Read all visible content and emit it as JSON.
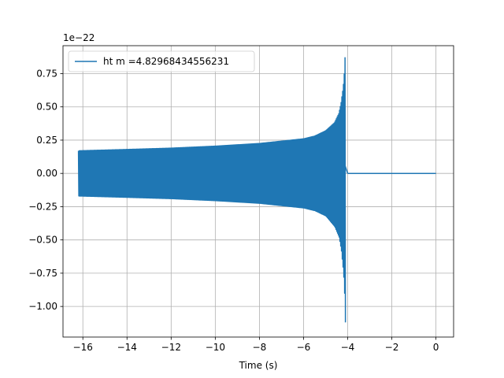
{
  "chart_data": {
    "type": "line",
    "xlabel": "Time (s)",
    "ylabel": "",
    "offset_text": "1e−22",
    "scale": 1e-22,
    "xlim": [
      -16.9,
      0.8
    ],
    "ylim": [
      -1.23,
      0.96
    ],
    "xticks": [
      -16,
      -14,
      -12,
      -10,
      -8,
      -6,
      -4,
      -2,
      0
    ],
    "xtick_labels": [
      "−16",
      "−14",
      "−12",
      "−10",
      "−8",
      "−6",
      "−4",
      "−2",
      "0"
    ],
    "yticks": [
      -1.0,
      -0.75,
      -0.5,
      -0.25,
      0.0,
      0.25,
      0.5,
      0.75
    ],
    "ytick_labels": [
      "−1.00",
      "−0.75",
      "−0.50",
      "−0.25",
      "0.00",
      "0.25",
      "0.50",
      "0.75"
    ],
    "grid": true,
    "legend_position": "upper-left",
    "series": [
      {
        "name": "ht m =4.82968434556231",
        "color": "#1f77b4",
        "t_start": -16.2,
        "t_merger": -4.12,
        "t_end": 0.0,
        "envelope": {
          "t": [
            -16.2,
            -14,
            -12,
            -10,
            -8,
            -6,
            -5.5,
            -5,
            -4.6,
            -4.4,
            -4.3,
            -4.2,
            -4.15,
            -4.12
          ],
          "upper": [
            0.17,
            0.18,
            0.19,
            0.205,
            0.225,
            0.26,
            0.28,
            0.32,
            0.38,
            0.45,
            0.53,
            0.65,
            0.76,
            0.87
          ],
          "lower": [
            -0.17,
            -0.18,
            -0.19,
            -0.205,
            -0.225,
            -0.26,
            -0.28,
            -0.32,
            -0.4,
            -0.48,
            -0.58,
            -0.75,
            -0.92,
            -1.12
          ]
        },
        "ringdown_t": -4.0,
        "post_value": 0.0
      }
    ]
  }
}
